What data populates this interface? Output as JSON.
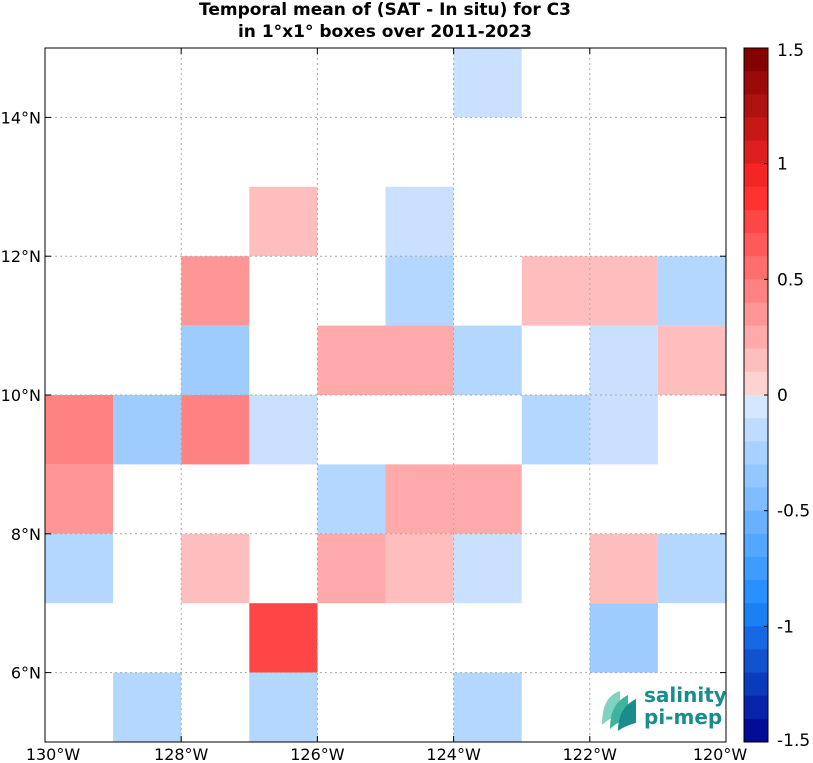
{
  "title_line1": "Temporal mean of (SAT - In situ) for C3",
  "title_line2": "in 1°x1° boxes over 2011-2023",
  "logo": {
    "line1": "salinity",
    "line2": "pi-mep"
  },
  "chart_data": {
    "type": "heatmap",
    "x_extent": [
      -130,
      -120
    ],
    "y_extent": [
      5,
      15
    ],
    "x_ticks": [
      {
        "value": -130,
        "label": "130°W"
      },
      {
        "value": -128,
        "label": "128°W"
      },
      {
        "value": -126,
        "label": "126°W"
      },
      {
        "value": -124,
        "label": "124°W"
      },
      {
        "value": -122,
        "label": "122°W"
      },
      {
        "value": -120,
        "label": "120°W"
      }
    ],
    "y_ticks": [
      {
        "value": 6,
        "label": "6°N"
      },
      {
        "value": 8,
        "label": "8°N"
      },
      {
        "value": 10,
        "label": "10°N"
      },
      {
        "value": 12,
        "label": "12°N"
      },
      {
        "value": 14,
        "label": "14°N"
      }
    ],
    "grid": true,
    "colorbar": {
      "range": [
        -1.5,
        1.5
      ],
      "ticks": [
        {
          "value": 1.5,
          "label": "1.5"
        },
        {
          "value": 1,
          "label": "1"
        },
        {
          "value": 0.5,
          "label": "0.5"
        },
        {
          "value": 0,
          "label": "0"
        },
        {
          "value": -0.5,
          "label": "-0.5"
        },
        {
          "value": -1,
          "label": "-1"
        },
        {
          "value": -1.5,
          "label": "-1.5"
        }
      ]
    },
    "cells": [
      {
        "lon": -124,
        "lat": 14,
        "value": -0.1
      },
      {
        "lon": -127,
        "lat": 12,
        "value": 0.15
      },
      {
        "lon": -125,
        "lat": 12,
        "value": -0.1
      },
      {
        "lon": -128,
        "lat": 11,
        "value": 0.35
      },
      {
        "lon": -125,
        "lat": 11,
        "value": -0.2
      },
      {
        "lon": -123,
        "lat": 11,
        "value": 0.15
      },
      {
        "lon": -122,
        "lat": 11,
        "value": 0.15
      },
      {
        "lon": -121,
        "lat": 11,
        "value": -0.2
      },
      {
        "lon": -128,
        "lat": 10,
        "value": -0.3
      },
      {
        "lon": -126,
        "lat": 10,
        "value": 0.25
      },
      {
        "lon": -125,
        "lat": 10,
        "value": 0.25
      },
      {
        "lon": -124,
        "lat": 10,
        "value": -0.2
      },
      {
        "lon": -122,
        "lat": 10,
        "value": -0.1
      },
      {
        "lon": -121,
        "lat": 10,
        "value": 0.15
      },
      {
        "lon": -130,
        "lat": 9,
        "value": 0.45
      },
      {
        "lon": -129,
        "lat": 9,
        "value": -0.3
      },
      {
        "lon": -128,
        "lat": 9,
        "value": 0.45
      },
      {
        "lon": -127,
        "lat": 9,
        "value": -0.1
      },
      {
        "lon": -123,
        "lat": 9,
        "value": -0.2
      },
      {
        "lon": -122,
        "lat": 9,
        "value": -0.1
      },
      {
        "lon": -130,
        "lat": 8,
        "value": 0.35
      },
      {
        "lon": -126,
        "lat": 8,
        "value": -0.2
      },
      {
        "lon": -125,
        "lat": 8,
        "value": 0.25
      },
      {
        "lon": -124,
        "lat": 8,
        "value": 0.25
      },
      {
        "lon": -130,
        "lat": 7,
        "value": -0.2
      },
      {
        "lon": -128,
        "lat": 7,
        "value": 0.15
      },
      {
        "lon": -126,
        "lat": 7,
        "value": 0.25
      },
      {
        "lon": -125,
        "lat": 7,
        "value": 0.15
      },
      {
        "lon": -124,
        "lat": 7,
        "value": -0.1
      },
      {
        "lon": -122,
        "lat": 7,
        "value": 0.15
      },
      {
        "lon": -121,
        "lat": 7,
        "value": -0.2
      },
      {
        "lon": -127,
        "lat": 6,
        "value": 0.75
      },
      {
        "lon": -122,
        "lat": 6,
        "value": -0.3
      },
      {
        "lon": -129,
        "lat": 5,
        "value": -0.2
      },
      {
        "lon": -127,
        "lat": 5,
        "value": -0.2
      },
      {
        "lon": -124,
        "lat": 5,
        "value": -0.2
      }
    ]
  }
}
